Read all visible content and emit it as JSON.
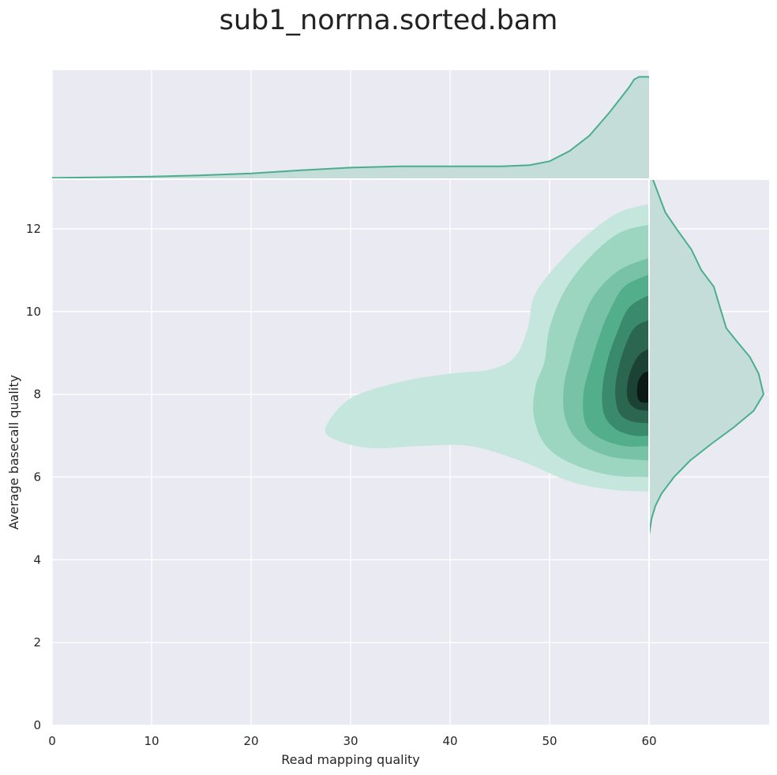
{
  "chart_data": {
    "type": "kde-jointplot",
    "title": "sub1_norrna.sorted.bam",
    "xlabel": "Read mapping quality",
    "ylabel": "Average basecall quality",
    "xlim": [
      0,
      60
    ],
    "ylim": [
      0,
      13.2
    ],
    "xticks": [
      0,
      10,
      20,
      30,
      40,
      50,
      60
    ],
    "yticks": [
      0,
      2,
      4,
      6,
      8,
      10,
      12
    ],
    "grid": true,
    "background": "#eaeaf2",
    "colors": {
      "line": "#4aae8c",
      "marginal_fill": "#c4ddd9",
      "levels": [
        "#c4e6dc",
        "#9cd5c0",
        "#78c3a7",
        "#52ae8b",
        "#3a8a6d",
        "#2a6650",
        "#1b4234",
        "#0b1a14"
      ]
    },
    "joint_density": {
      "peak": {
        "x": 59.5,
        "y": 8.1
      },
      "levels": [
        {
          "level": 1,
          "outline": [
            [
              60,
              12.6
            ],
            [
              57,
              12.4
            ],
            [
              54,
              11.9
            ],
            [
              51,
              11.2
            ],
            [
              48.5,
              10.4
            ],
            [
              47.8,
              9.6
            ],
            [
              46.5,
              8.9
            ],
            [
              44,
              8.6
            ],
            [
              40,
              8.5
            ],
            [
              35,
              8.3
            ],
            [
              30,
              7.9
            ],
            [
              27.5,
              7.2
            ],
            [
              28.5,
              6.9
            ],
            [
              32,
              6.7
            ],
            [
              37,
              6.75
            ],
            [
              42,
              6.75
            ],
            [
              47,
              6.4
            ],
            [
              52,
              5.9
            ],
            [
              56,
              5.7
            ],
            [
              60,
              5.65
            ]
          ]
        },
        {
          "level": 2,
          "outline": [
            [
              60,
              12.1
            ],
            [
              57,
              11.9
            ],
            [
              54,
              11.3
            ],
            [
              51.5,
              10.5
            ],
            [
              50,
              9.6
            ],
            [
              49.5,
              8.8
            ],
            [
              48.6,
              8.2
            ],
            [
              48.4,
              7.5
            ],
            [
              49.5,
              6.8
            ],
            [
              52,
              6.35
            ],
            [
              56,
              6.05
            ],
            [
              60,
              6.0
            ]
          ]
        },
        {
          "level": 3,
          "outline": [
            [
              60,
              11.3
            ],
            [
              57,
              11.0
            ],
            [
              54.5,
              10.4
            ],
            [
              53,
              9.6
            ],
            [
              52,
              8.8
            ],
            [
              51.4,
              8.1
            ],
            [
              51.6,
              7.4
            ],
            [
              53,
              6.85
            ],
            [
              56,
              6.5
            ],
            [
              60,
              6.4
            ]
          ]
        },
        {
          "level": 4,
          "outline": [
            [
              60,
              10.9
            ],
            [
              57.5,
              10.6
            ],
            [
              56,
              10.0
            ],
            [
              55,
              9.4
            ],
            [
              54.1,
              8.7
            ],
            [
              53.4,
              8.0
            ],
            [
              53.6,
              7.3
            ],
            [
              55,
              6.95
            ],
            [
              57.5,
              6.75
            ],
            [
              60,
              6.75
            ]
          ]
        },
        {
          "level": 5,
          "outline": [
            [
              60,
              10.4
            ],
            [
              58,
              10.1
            ],
            [
              56.8,
              9.5
            ],
            [
              55.8,
              8.8
            ],
            [
              55.3,
              8.1
            ],
            [
              55.5,
              7.5
            ],
            [
              56.7,
              7.15
            ],
            [
              58.5,
              7.0
            ],
            [
              60,
              7.0
            ]
          ]
        },
        {
          "level": 6,
          "outline": [
            [
              60,
              9.8
            ],
            [
              58.5,
              9.6
            ],
            [
              57.5,
              9.1
            ],
            [
              56.8,
              8.5
            ],
            [
              56.6,
              8.0
            ],
            [
              57.0,
              7.55
            ],
            [
              58.2,
              7.35
            ],
            [
              60,
              7.3
            ]
          ]
        },
        {
          "level": 7,
          "outline": [
            [
              60,
              9.1
            ],
            [
              59,
              8.95
            ],
            [
              58.2,
              8.6
            ],
            [
              57.8,
              8.2
            ],
            [
              57.9,
              7.85
            ],
            [
              58.7,
              7.65
            ],
            [
              60,
              7.6
            ]
          ]
        },
        {
          "level": 8,
          "outline": [
            [
              60,
              8.55
            ],
            [
              59.4,
              8.5
            ],
            [
              58.9,
              8.3
            ],
            [
              58.8,
              8.0
            ],
            [
              59.1,
              7.82
            ],
            [
              60,
              7.8
            ]
          ]
        }
      ]
    },
    "marginal_x": {
      "x": [
        0,
        5,
        10,
        15,
        20,
        25,
        30,
        35,
        40,
        45,
        48,
        50,
        52,
        54,
        56,
        57,
        58,
        58.5,
        59,
        60
      ],
      "density": [
        0.01,
        0.015,
        0.02,
        0.03,
        0.045,
        0.07,
        0.09,
        0.1,
        0.1,
        0.1,
        0.11,
        0.14,
        0.22,
        0.34,
        0.52,
        0.62,
        0.72,
        0.78,
        0.8,
        0.8
      ]
    },
    "marginal_y": {
      "y": [
        13.2,
        12.8,
        12.4,
        12.0,
        11.5,
        11.0,
        10.6,
        10.0,
        9.6,
        9.3,
        8.9,
        8.5,
        8.0,
        7.6,
        7.2,
        6.8,
        6.4,
        6.0,
        5.6,
        5.3,
        5.0,
        4.8,
        4.6
      ],
      "density": [
        0.03,
        0.08,
        0.13,
        0.22,
        0.34,
        0.42,
        0.52,
        0.58,
        0.62,
        0.7,
        0.81,
        0.88,
        0.92,
        0.84,
        0.68,
        0.5,
        0.33,
        0.2,
        0.1,
        0.05,
        0.02,
        0.01,
        0.0
      ]
    }
  }
}
